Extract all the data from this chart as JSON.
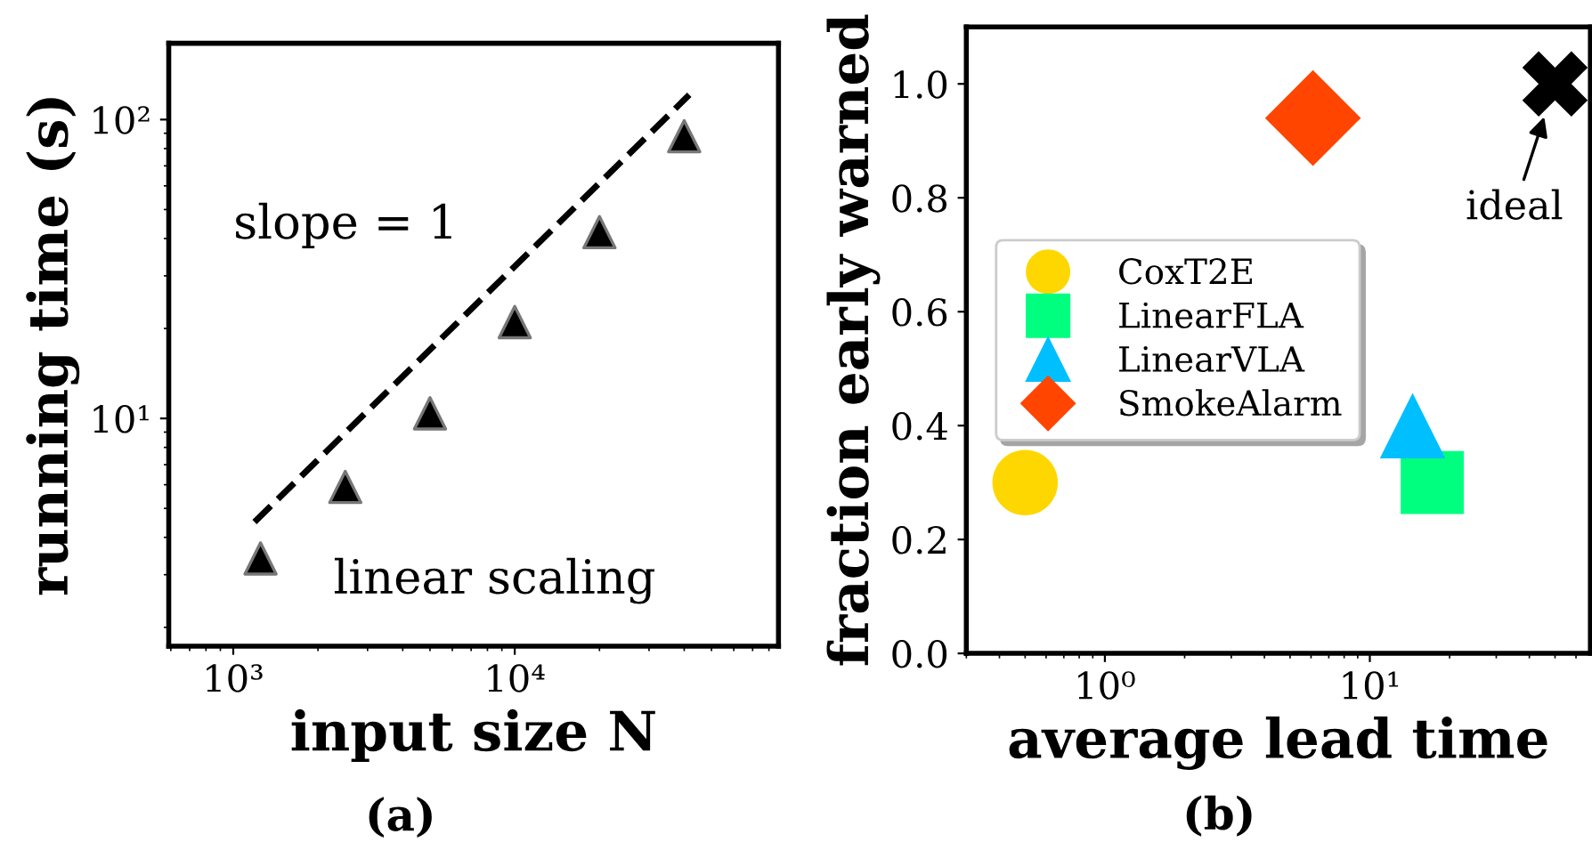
{
  "chart_data": [
    {
      "type": "scatter",
      "xlabel": "input size N",
      "ylabel": "running time (s)",
      "log": "xy",
      "xlim": [
        590,
        86500
      ],
      "ylim": [
        1.73,
        180
      ],
      "xticks": [
        {
          "value": 1000,
          "label": "10³"
        },
        {
          "value": 10000,
          "label": "10⁴"
        }
      ],
      "yticks": [
        {
          "value": 10,
          "label": "10¹"
        },
        {
          "value": 100,
          "label": "10²"
        }
      ],
      "grid": false,
      "legend": false,
      "series": [
        {
          "type": "line",
          "x": [
            1190,
            41700
          ],
          "values": [
            4.5,
            121
          ],
          "color": "#000000",
          "line_style": "dashed",
          "marker": "none"
        },
        {
          "type": "scatter",
          "x": [
            1250,
            2500,
            5000,
            10000,
            20000,
            40000
          ],
          "values": [
            3.4,
            5.9,
            10.4,
            21,
            42,
            88
          ],
          "color": "#000000",
          "marker": "triangle"
        }
      ],
      "annotations": [
        "slope = 1",
        "linear scaling",
        "(a)"
      ]
    },
    {
      "type": "scatter",
      "xlabel": "average lead time",
      "ylabel": "fraction early warned",
      "log": "x",
      "xlim": [
        0.3,
        68
      ],
      "ylim": [
        0,
        1.1
      ],
      "xticks": [
        {
          "value": 1,
          "label": "10⁰"
        },
        {
          "value": 10,
          "label": "10¹"
        }
      ],
      "yticks": [
        {
          "value": 0,
          "label": "0.0"
        },
        {
          "value": 0.2,
          "label": "0.2"
        },
        {
          "value": 0.4,
          "label": "0.4"
        },
        {
          "value": 0.6,
          "label": "0.6"
        },
        {
          "value": 0.8,
          "label": "0.8"
        },
        {
          "value": 1.0,
          "label": "1.0"
        }
      ],
      "grid": false,
      "legend": "left",
      "series": [
        {
          "name": "CoxT2E",
          "x": [
            0.5
          ],
          "values": [
            0.3
          ],
          "color": "#ffd700",
          "marker": "circle"
        },
        {
          "name": "LinearFLA",
          "x": [
            17.2
          ],
          "values": [
            0.3
          ],
          "color": "#00ff7f",
          "marker": "square"
        },
        {
          "name": "LinearVLA",
          "x": [
            14.5
          ],
          "values": [
            0.4
          ],
          "color": "#00bfff",
          "marker": "triangle"
        },
        {
          "name": "SmokeAlarm",
          "x": [
            6.1
          ],
          "values": [
            0.94
          ],
          "color": "#ff4500",
          "marker": "diamond"
        },
        {
          "x": [
            50
          ],
          "values": [
            1.0
          ],
          "color": "#000000",
          "marker": "cross"
        }
      ],
      "annotations": [
        {
          "text": "ideal",
          "x": 50,
          "y": 1.0
        },
        "(b)"
      ]
    }
  ]
}
